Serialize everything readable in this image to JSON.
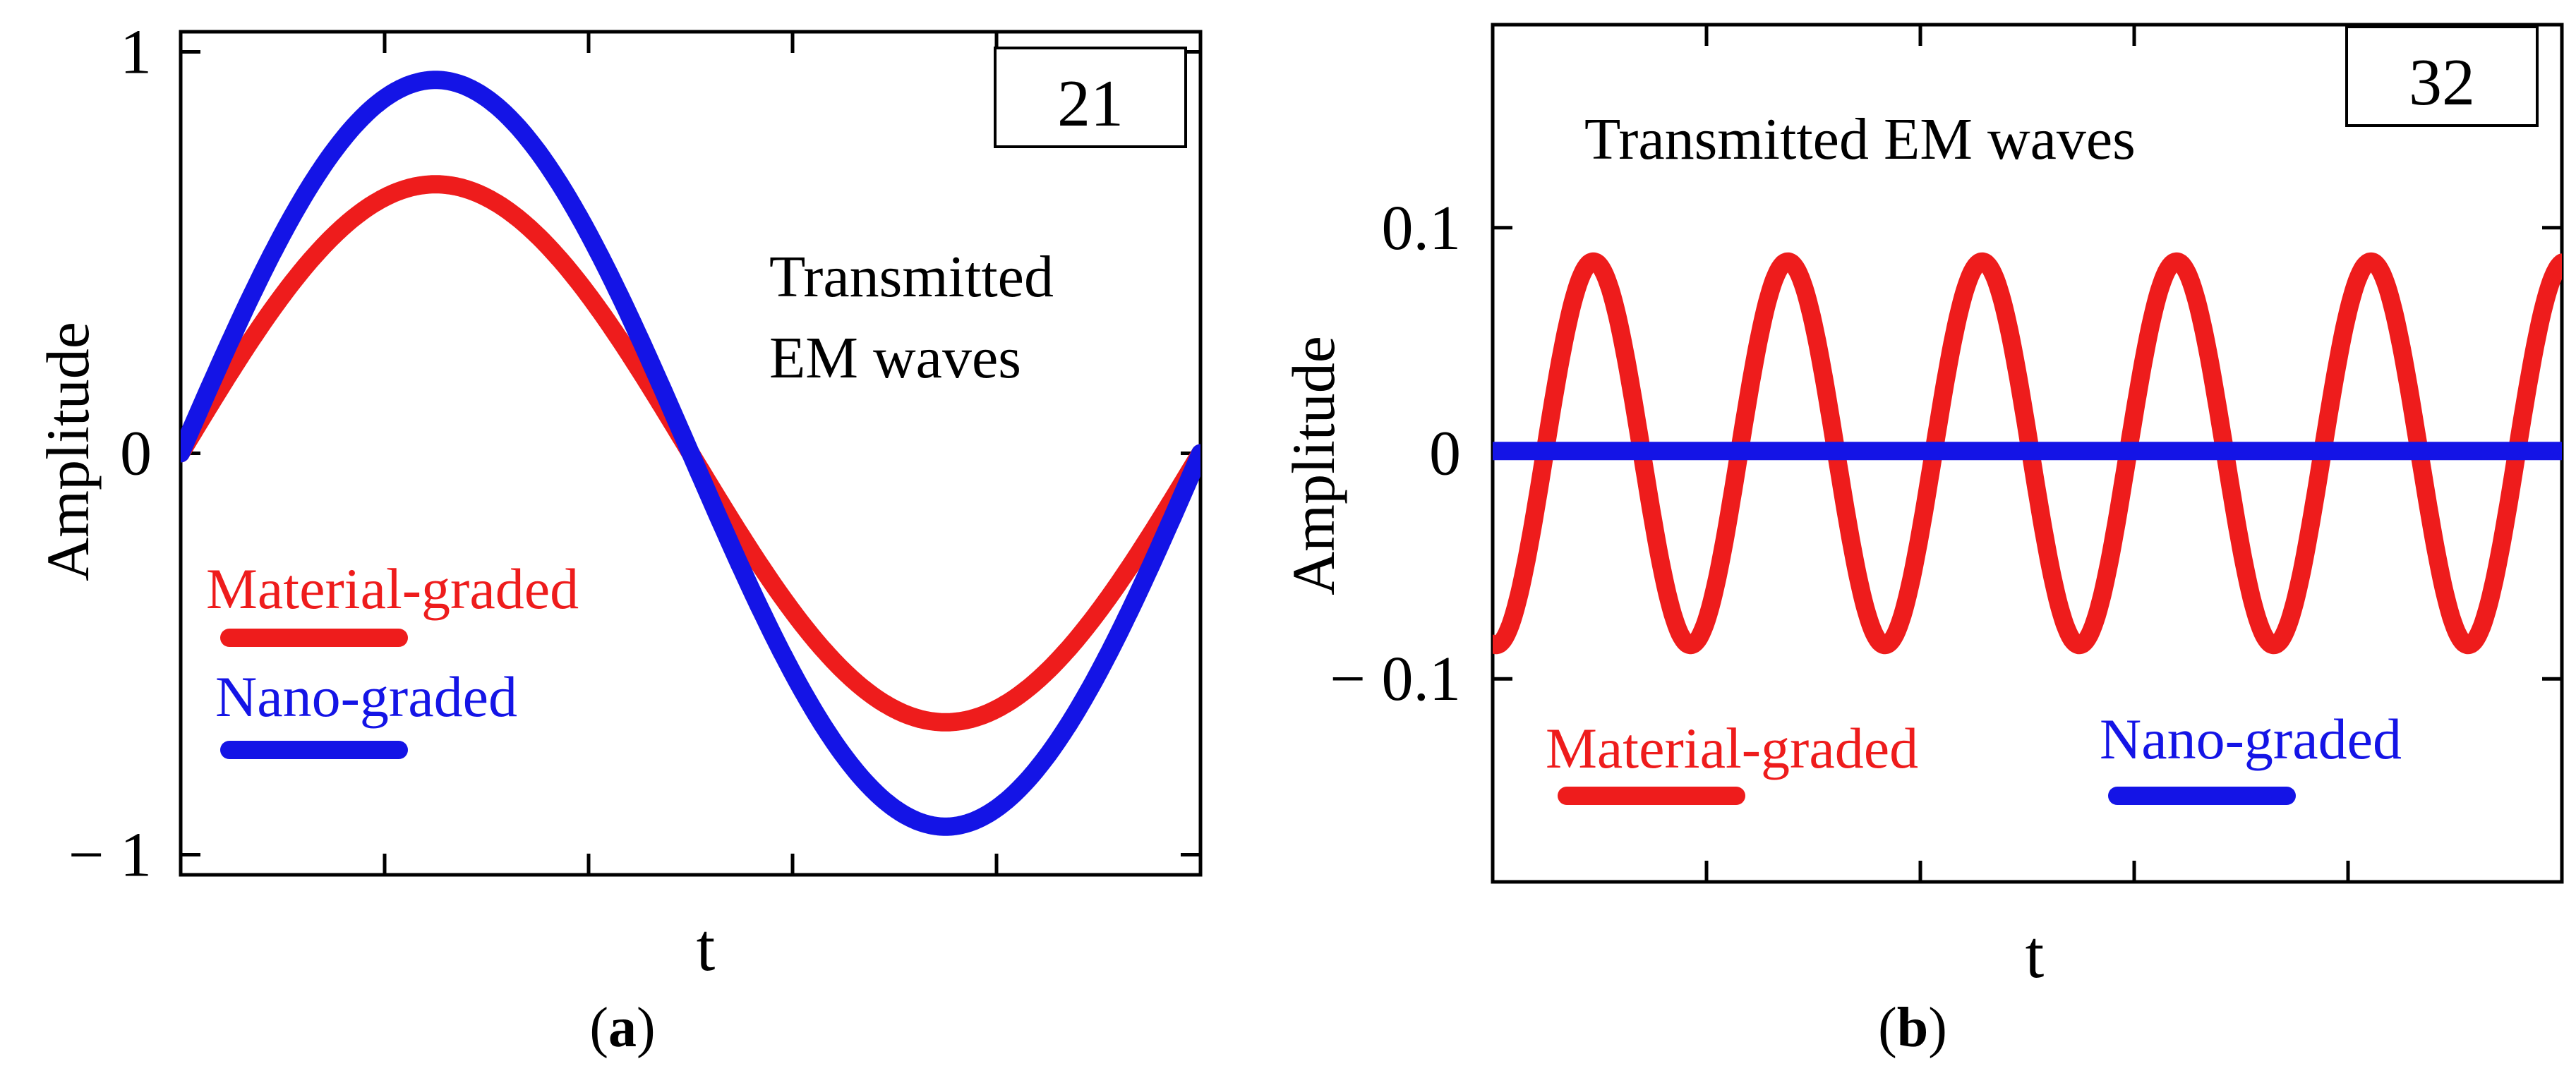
{
  "colors": {
    "material_graded": "#ee1c1c",
    "nano_graded": "#1414e6",
    "axis": "#000000",
    "background": "#ffffff"
  },
  "chart_data": [
    {
      "type": "line",
      "panel_label": "(a)",
      "panel_letter": "a",
      "box_label": "21",
      "xlabel": "t",
      "ylabel": "Amplitude",
      "annotation": [
        "Transmitted",
        "EM waves"
      ],
      "xlim": [
        0,
        1
      ],
      "ylim": [
        -1.05,
        1.05
      ],
      "yticks": [
        {
          "value": 1,
          "label": "1"
        },
        {
          "value": 0,
          "label": "0"
        },
        {
          "value": -1,
          "label": "− 1"
        }
      ],
      "xticks_count": 4,
      "legend": [
        {
          "name": "Material-graded"
        },
        {
          "name": "Nano-graded"
        }
      ],
      "series": [
        {
          "name": "Material-graded",
          "color_key": "material_graded",
          "amplitude": 0.67,
          "cycles": 1.0,
          "phase": 0,
          "offset": 0
        },
        {
          "name": "Nano-graded",
          "color_key": "nano_graded",
          "amplitude": 0.93,
          "cycles": 1.0,
          "phase": 0,
          "offset": 0
        }
      ]
    },
    {
      "type": "line",
      "panel_label": "(b)",
      "panel_letter": "b",
      "box_label": "32",
      "xlabel": "t",
      "ylabel": "Amplitude",
      "annotation": [
        "Transmitted EM waves"
      ],
      "xlim": [
        0,
        1
      ],
      "ylim": [
        -0.19,
        0.19
      ],
      "yticks": [
        {
          "value": 0.1,
          "label": "0.1"
        },
        {
          "value": 0,
          "label": "0"
        },
        {
          "value": -0.1,
          "label": "− 0.1"
        }
      ],
      "xticks_count": 4,
      "legend": [
        {
          "name": "Material-graded"
        },
        {
          "name": "Nano-graded"
        }
      ],
      "series": [
        {
          "name": "Material-graded",
          "color_key": "material_graded",
          "amplitude": 0.085,
          "cycles": 5.5,
          "phase": 4.6,
          "offset": 0
        },
        {
          "name": "Nano-graded",
          "color_key": "nano_graded",
          "amplitude": 0,
          "cycles": 1,
          "phase": 0,
          "offset": 0.001
        }
      ]
    }
  ]
}
